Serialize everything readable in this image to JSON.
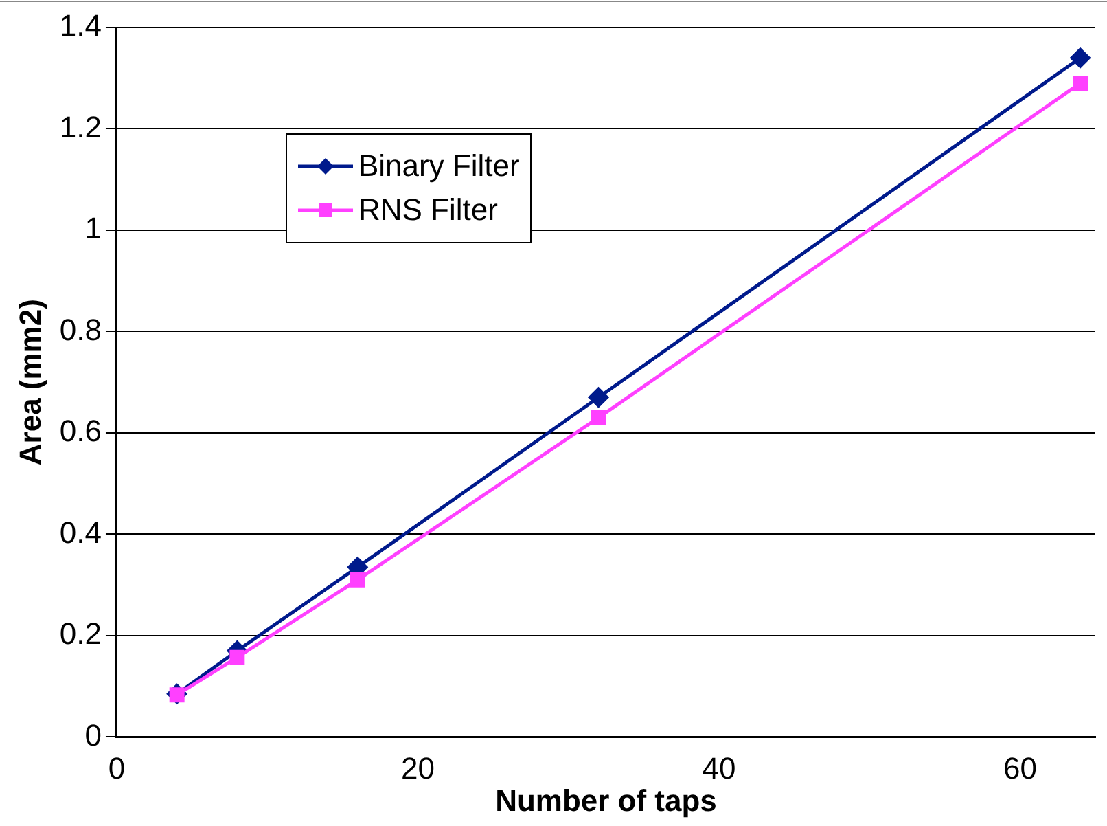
{
  "chart_data": {
    "type": "line",
    "xlabel": "Number of taps",
    "ylabel": "Area (mm2)",
    "xlim": [
      0,
      65
    ],
    "xticks": [
      0,
      20,
      40,
      60
    ],
    "ylim": [
      0,
      1.4
    ],
    "yticks": [
      0,
      0.2,
      0.4,
      0.6,
      0.8,
      1,
      1.2,
      1.4
    ],
    "grid": "y",
    "legend": "top left",
    "line_style": "solid",
    "series": [
      {
        "name": "Binary Filter",
        "color": "#001a8c",
        "marker": "diamond",
        "x": [
          4,
          8,
          16,
          32,
          64
        ],
        "values": [
          0.085,
          0.17,
          0.335,
          0.67,
          1.34
        ]
      },
      {
        "name": "RNS Filter",
        "color": "#ff40ff",
        "marker": "square",
        "x": [
          4,
          8,
          16,
          32,
          64
        ],
        "values": [
          0.083,
          0.157,
          0.31,
          0.63,
          1.29
        ]
      }
    ]
  }
}
